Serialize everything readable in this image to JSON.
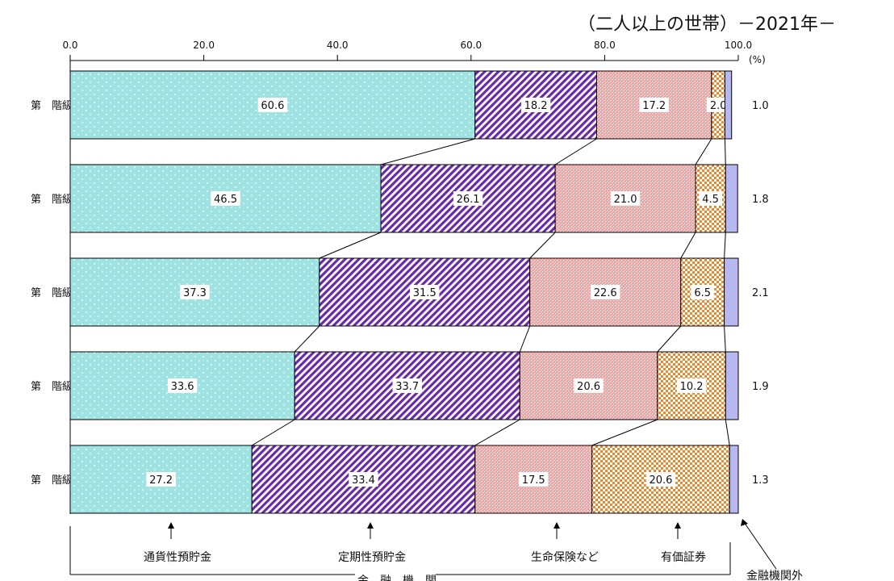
{
  "subtitle": "（二人以上の世帯）－2021年－",
  "chart_data": {
    "type": "bar",
    "orientation": "horizontal",
    "stacked": true,
    "percent_unit": "(%)",
    "xlim": [
      0,
      100
    ],
    "x_ticks": [
      "0.0",
      "20.0",
      "40.0",
      "60.0",
      "80.0",
      "100.0"
    ],
    "categories": [
      "第　階級",
      "第　階級",
      "第　階級",
      "第　階級",
      "第　階級"
    ],
    "series": [
      {
        "name": "通貨性預貯金",
        "values": [
          60.6,
          46.5,
          37.3,
          33.6,
          27.2
        ],
        "color": "#9ee2e2",
        "pattern": "dots"
      },
      {
        "name": "定期性預貯金",
        "values": [
          18.2,
          26.1,
          31.5,
          33.7,
          33.4
        ],
        "color": "#6a2aa8",
        "pattern": "diagonal"
      },
      {
        "name": "生命保険など",
        "values": [
          17.2,
          21.0,
          22.6,
          20.6,
          17.5
        ],
        "color": "#f6a0a0",
        "pattern": "mesh"
      },
      {
        "name": "有価証券",
        "values": [
          2.0,
          4.5,
          6.5,
          10.2,
          20.6
        ],
        "color": "#e8892f",
        "pattern": "checker"
      },
      {
        "name": "金融機関外",
        "values": [
          1.0,
          1.8,
          2.1,
          1.9,
          1.3
        ],
        "color": "#b8b8f0",
        "pattern": "solid"
      }
    ],
    "group_label": "金　融　機　関",
    "connector_lines": true
  }
}
